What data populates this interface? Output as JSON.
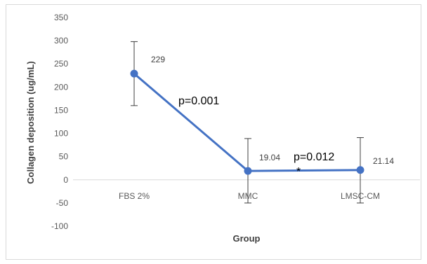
{
  "chart_data": {
    "type": "line",
    "categories": [
      "FBS 2%",
      "MMC",
      "LMSC-CM"
    ],
    "series": [
      {
        "values": [
          229,
          19.04,
          21.14
        ],
        "error_low": [
          160,
          -50,
          -50
        ],
        "error_high": [
          298,
          89,
          91
        ],
        "data_labels": [
          "229",
          "19.04",
          "21.14"
        ],
        "color": "#4472c4"
      }
    ],
    "xlabel": "Group",
    "ylabel": "Collagen deposition (ug/mL)",
    "ylim": [
      -100,
      350
    ],
    "yticks": [
      "350",
      "300",
      "250",
      "200",
      "150",
      "100",
      "50",
      "0",
      "-50",
      "-100"
    ],
    "grid": false,
    "annotations": [
      "p=0.001",
      "p=0.012",
      "*"
    ]
  }
}
